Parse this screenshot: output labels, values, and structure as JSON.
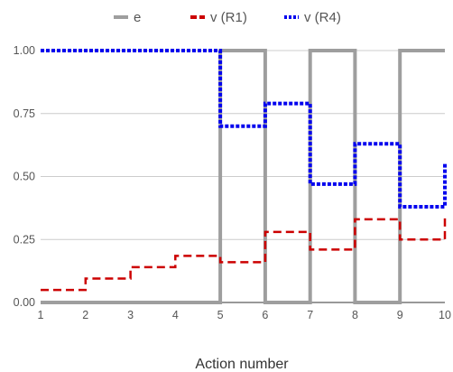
{
  "chart_data": {
    "type": "line",
    "xlabel": "Action number",
    "ylabel": "",
    "xlim": [
      1,
      10
    ],
    "ylim": [
      0,
      1
    ],
    "x_ticks": [
      "1",
      "2",
      "3",
      "4",
      "5",
      "6",
      "7",
      "8",
      "9",
      "10"
    ],
    "y_ticks": [
      "0.00",
      "0.25",
      "0.50",
      "0.75",
      "1.00"
    ],
    "grid": true,
    "legend_position": "top",
    "series": [
      {
        "name": "e",
        "color": "#9e9e9e",
        "style": "solid-step",
        "x": [
          1,
          5,
          5,
          6,
          6,
          7,
          7,
          8,
          8,
          9,
          9,
          10
        ],
        "y": [
          0,
          0,
          1,
          1,
          0,
          0,
          1,
          1,
          0,
          0,
          1,
          1
        ]
      },
      {
        "name": "v (R1)",
        "color": "#cc0000",
        "style": "dashed-step",
        "x": [
          1,
          2,
          3,
          4,
          5,
          6,
          7,
          8,
          9,
          10
        ],
        "y": [
          0.05,
          0.095,
          0.14,
          0.185,
          0.16,
          0.28,
          0.21,
          0.33,
          0.25,
          0.34
        ]
      },
      {
        "name": "v (R4)",
        "color": "#0000ee",
        "style": "dotted-step",
        "x": [
          1,
          5,
          6,
          7,
          8,
          9,
          10
        ],
        "y": [
          1.0,
          0.7,
          0.79,
          0.47,
          0.63,
          0.38,
          0.55
        ]
      }
    ]
  }
}
